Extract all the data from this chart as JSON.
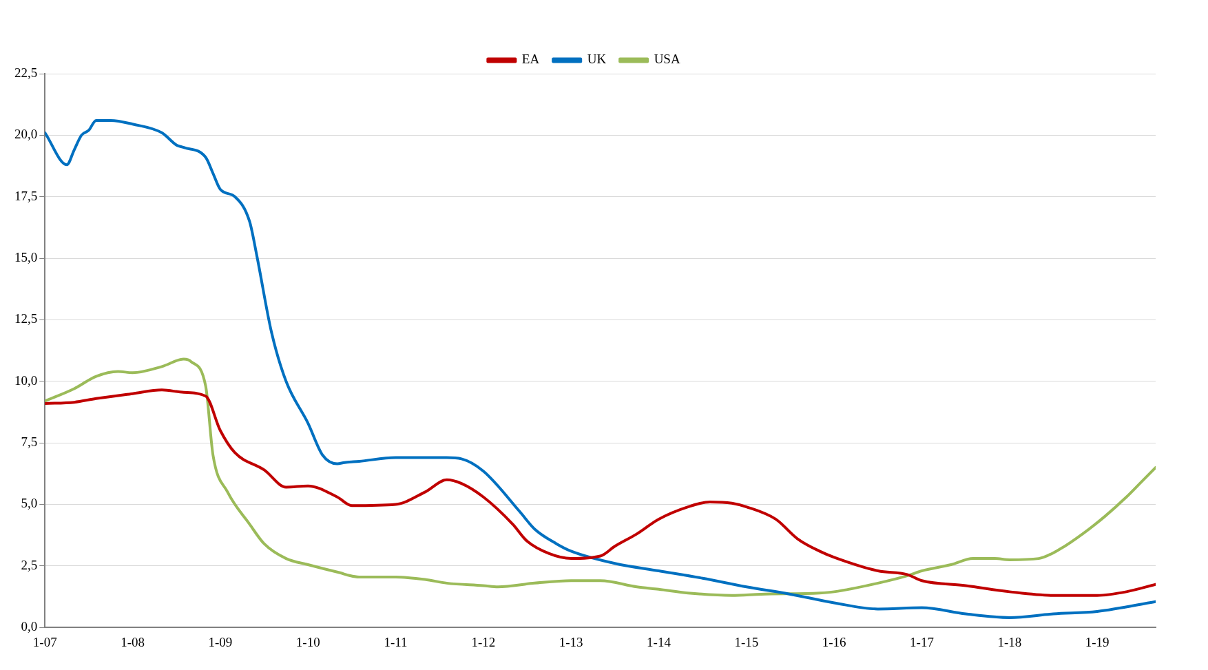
{
  "chart_data": {
    "type": "line",
    "xlim": [
      "2007-01",
      "2019-09"
    ],
    "xticks": [
      {
        "value": "2007-01",
        "label": "1-07"
      },
      {
        "value": "2008-01",
        "label": "1-08"
      },
      {
        "value": "2009-01",
        "label": "1-09"
      },
      {
        "value": "2010-01",
        "label": "1-10"
      },
      {
        "value": "2011-01",
        "label": "1-11"
      },
      {
        "value": "2012-01",
        "label": "1-12"
      },
      {
        "value": "2013-01",
        "label": "1-13"
      },
      {
        "value": "2014-01",
        "label": "1-14"
      },
      {
        "value": "2015-01",
        "label": "1-15"
      },
      {
        "value": "2016-01",
        "label": "1-16"
      },
      {
        "value": "2017-01",
        "label": "1-17"
      },
      {
        "value": "2018-01",
        "label": "1-18"
      },
      {
        "value": "2019-01",
        "label": "1-19"
      }
    ],
    "ylim": [
      0,
      22.5
    ],
    "yticks": [
      {
        "value": 0,
        "label": "0,0"
      },
      {
        "value": 2.5,
        "label": "2,5"
      },
      {
        "value": 5,
        "label": "5,0"
      },
      {
        "value": 7.5,
        "label": "7,5"
      },
      {
        "value": 10,
        "label": "10,0"
      },
      {
        "value": 12.5,
        "label": "12,5"
      },
      {
        "value": 15,
        "label": "15,0"
      },
      {
        "value": 17.5,
        "label": "17,5"
      },
      {
        "value": 20,
        "label": "20,0"
      },
      {
        "value": 22.5,
        "label": "22,5"
      }
    ],
    "grid": "y",
    "legend": "top",
    "marker": "none",
    "line_style": "solid",
    "series": [
      {
        "name": "EA",
        "color": "#c00000",
        "x": [
          "2007-01",
          "2007-05",
          "2007-08",
          "2008-01",
          "2008-05",
          "2008-08",
          "2008-11",
          "2009-01",
          "2009-03",
          "2009-07",
          "2009-10",
          "2010-01",
          "2010-05",
          "2010-07",
          "2011-01",
          "2011-05",
          "2011-08",
          "2011-10",
          "2012-01",
          "2012-05",
          "2012-07",
          "2012-10",
          "2013-01",
          "2013-05",
          "2013-07",
          "2013-10",
          "2014-01",
          "2014-05",
          "2014-08",
          "2014-11",
          "2015-01",
          "2015-05",
          "2015-08",
          "2015-11",
          "2016-01",
          "2016-07",
          "2016-11",
          "2017-01",
          "2017-07",
          "2018-01",
          "2018-07",
          "2019-01",
          "2019-05",
          "2019-09"
        ],
        "values": [
          9.1,
          9.15,
          9.3,
          9.5,
          9.65,
          9.55,
          9.4,
          8.0,
          7.1,
          6.4,
          5.7,
          5.75,
          5.3,
          4.95,
          5.0,
          5.5,
          6.0,
          5.85,
          5.3,
          4.2,
          3.5,
          3.0,
          2.8,
          2.9,
          3.3,
          3.8,
          4.4,
          4.9,
          5.1,
          5.05,
          4.9,
          4.4,
          3.6,
          3.1,
          2.85,
          2.3,
          2.15,
          1.9,
          1.7,
          1.45,
          1.3,
          1.3,
          1.45,
          1.75
        ]
      },
      {
        "name": "UK",
        "color": "#0070c0",
        "x": [
          "2007-01",
          "2007-04",
          "2007-05",
          "2007-06",
          "2007-07",
          "2007-08",
          "2007-10",
          "2008-01",
          "2008-05",
          "2008-07",
          "2008-08",
          "2008-11",
          "2008-12",
          "2009-01",
          "2009-03",
          "2009-05",
          "2009-06",
          "2009-08",
          "2009-10",
          "2010-01",
          "2010-03",
          "2010-05",
          "2010-06",
          "2010-08",
          "2011-01",
          "2011-05",
          "2011-08",
          "2011-10",
          "2012-01",
          "2012-06",
          "2012-08",
          "2012-11",
          "2013-01",
          "2013-07",
          "2014-01",
          "2014-07",
          "2015-01",
          "2015-07",
          "2016-01",
          "2016-07",
          "2017-01",
          "2017-07",
          "2018-01",
          "2018-07",
          "2019-01",
          "2019-09"
        ],
        "values": [
          20.1,
          18.8,
          19.4,
          20.0,
          20.2,
          20.6,
          20.6,
          20.45,
          20.1,
          19.6,
          19.5,
          19.1,
          18.45,
          17.8,
          17.5,
          16.5,
          15.1,
          12.0,
          10.0,
          8.3,
          7.0,
          6.65,
          6.7,
          6.75,
          6.9,
          6.9,
          6.9,
          6.85,
          6.35,
          4.7,
          4.0,
          3.4,
          3.1,
          2.6,
          2.3,
          2.0,
          1.65,
          1.35,
          1.0,
          0.75,
          0.8,
          0.55,
          0.4,
          0.55,
          0.65,
          1.05
        ]
      },
      {
        "name": "USA",
        "color": "#9bbb59",
        "x": [
          "2007-01",
          "2007-05",
          "2007-08",
          "2007-11",
          "2008-01",
          "2008-05",
          "2008-08",
          "2008-09",
          "2008-11",
          "2008-12",
          "2009-02",
          "2009-05",
          "2009-07",
          "2009-10",
          "2010-01",
          "2010-05",
          "2010-08",
          "2011-01",
          "2011-05",
          "2011-08",
          "2012-01",
          "2012-03",
          "2012-08",
          "2013-01",
          "2013-05",
          "2013-10",
          "2014-01",
          "2014-05",
          "2014-11",
          "2015-03",
          "2015-11",
          "2016-01",
          "2016-07",
          "2016-11",
          "2017-01",
          "2017-05",
          "2017-08",
          "2017-11",
          "2018-01",
          "2018-05",
          "2018-08",
          "2018-11",
          "2019-02",
          "2019-05",
          "2019-07",
          "2019-09"
        ],
        "values": [
          9.2,
          9.7,
          10.2,
          10.4,
          10.35,
          10.6,
          10.9,
          10.8,
          9.8,
          7.0,
          5.5,
          4.2,
          3.4,
          2.8,
          2.55,
          2.25,
          2.05,
          2.05,
          1.95,
          1.8,
          1.7,
          1.65,
          1.8,
          1.9,
          1.9,
          1.65,
          1.55,
          1.4,
          1.3,
          1.35,
          1.4,
          1.45,
          1.8,
          2.1,
          2.3,
          2.55,
          2.8,
          2.8,
          2.75,
          2.8,
          3.2,
          3.8,
          4.5,
          5.3,
          5.9,
          6.5
        ]
      }
    ]
  }
}
